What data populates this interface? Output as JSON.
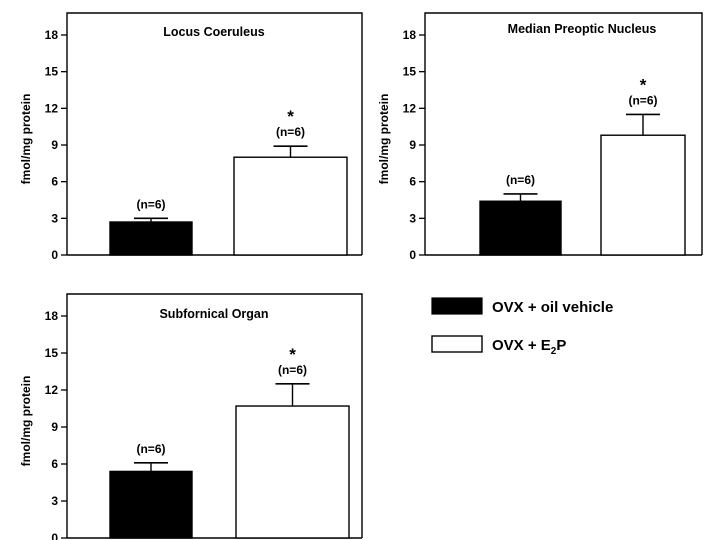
{
  "chart_data": [
    {
      "type": "bar",
      "title": "Locus Coeruleus",
      "ylabel": "fmol/mg protein",
      "ylim": [
        0,
        18
      ],
      "yticks": [
        0,
        3,
        6,
        9,
        12,
        15,
        18
      ],
      "series": [
        {
          "name": "OVX + oil vehicle",
          "value": 2.7,
          "error": 0.3,
          "n_label": "(n=6)",
          "marker": ""
        },
        {
          "name": "OVX + E2P",
          "value": 8.0,
          "error": 0.9,
          "n_label": "(n=6)",
          "marker": "*"
        }
      ]
    },
    {
      "type": "bar",
      "title": "Median Preoptic Nucleus",
      "ylabel": "fmol/mg protein",
      "ylim": [
        0,
        18
      ],
      "yticks": [
        0,
        3,
        6,
        9,
        12,
        15,
        18
      ],
      "series": [
        {
          "name": "OVX + oil vehicle",
          "value": 4.4,
          "error": 0.6,
          "n_label": "(n=6)",
          "marker": ""
        },
        {
          "name": "OVX + E2P",
          "value": 9.8,
          "error": 1.7,
          "n_label": "(n=6)",
          "marker": "*"
        }
      ]
    },
    {
      "type": "bar",
      "title": "Subfornical Organ",
      "ylabel": "fmol/mg protein",
      "ylim": [
        0,
        18
      ],
      "yticks": [
        0,
        3,
        6,
        9,
        12,
        15,
        18
      ],
      "series": [
        {
          "name": "OVX + oil vehicle",
          "value": 5.4,
          "error": 0.7,
          "n_label": "(n=6)",
          "marker": ""
        },
        {
          "name": "OVX + E2P",
          "value": 10.7,
          "error": 1.8,
          "n_label": "(n=6)",
          "marker": "*"
        }
      ]
    }
  ],
  "legend": {
    "items": [
      {
        "label": "OVX + oil vehicle",
        "fill": "#000000"
      },
      {
        "label_main": "OVX + E",
        "label_sub": "2",
        "label_end": "P",
        "fill": "#ffffff"
      }
    ]
  },
  "colors": {
    "bar_control": "#000000",
    "bar_treated": "#ffffff",
    "stroke": "#000000"
  }
}
